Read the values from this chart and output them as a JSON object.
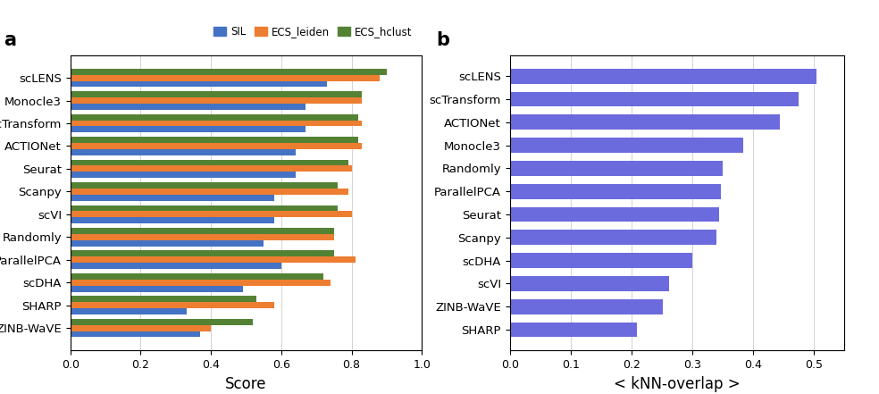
{
  "panel_a": {
    "categories": [
      "scLENS",
      "Monocle3",
      "scTransform",
      "ACTIONet",
      "Seurat",
      "Scanpy",
      "scVI",
      "Randomly",
      "ParallelPCA",
      "scDHA",
      "SHARP",
      "ZINB-WaVE"
    ],
    "SIL": [
      0.73,
      0.67,
      0.67,
      0.64,
      0.64,
      0.58,
      0.58,
      0.55,
      0.6,
      0.49,
      0.33,
      0.37
    ],
    "ECS_leiden": [
      0.88,
      0.83,
      0.83,
      0.83,
      0.8,
      0.79,
      0.8,
      0.75,
      0.81,
      0.74,
      0.58,
      0.4
    ],
    "ECS_hclust": [
      0.9,
      0.83,
      0.82,
      0.82,
      0.79,
      0.76,
      0.76,
      0.75,
      0.75,
      0.72,
      0.53,
      0.52
    ],
    "color_SIL": "#4472c4",
    "color_ECS_leiden": "#ed7d31",
    "color_ECS_hclust": "#548235",
    "xlabel": "Score",
    "title": "a",
    "xlim": [
      0,
      1.0
    ],
    "xticks": [
      0,
      0.2,
      0.4,
      0.6,
      0.8,
      1.0
    ]
  },
  "panel_b": {
    "categories": [
      "scLENS",
      "scTransform",
      "ACTIONet",
      "Monocle3",
      "Randomly",
      "ParallelPCA",
      "Seurat",
      "Scanpy",
      "scDHA",
      "scVI",
      "ZINB-WaVE",
      "SHARP"
    ],
    "values": [
      0.505,
      0.475,
      0.445,
      0.385,
      0.35,
      0.348,
      0.345,
      0.34,
      0.3,
      0.262,
      0.252,
      0.21
    ],
    "color": "#6b6bdd",
    "xlabel": "< kNN-overlap >",
    "title": "b",
    "xlim": [
      0,
      0.55
    ],
    "xticks": [
      0,
      0.1,
      0.2,
      0.3,
      0.4,
      0.5
    ]
  },
  "figsize": [
    9.84,
    4.41
  ],
  "dpi": 100
}
